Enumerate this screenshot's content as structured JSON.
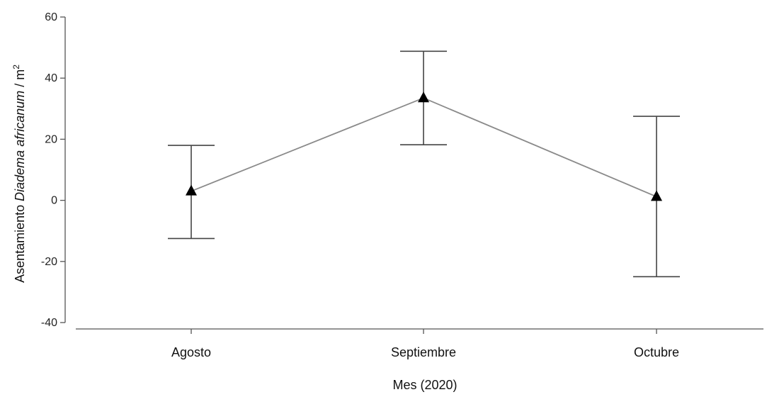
{
  "chart_data": {
    "type": "line",
    "categories": [
      "Agosto",
      "Septiembre",
      "Octubre"
    ],
    "series": [
      {
        "values": [
          3,
          33.5,
          1.2
        ],
        "error_low": [
          -12.5,
          18.2,
          -25
        ],
        "error_high": [
          18,
          48.8,
          27.5
        ],
        "marker": "triangle",
        "line_color": "#8a8a8a",
        "marker_color": "#000000"
      }
    ],
    "title": "",
    "xlabel": "Mes (2020)",
    "ylabel_parts": [
      "Asentamiento ",
      "Diadema africanum",
      " / m",
      "2"
    ],
    "yticks": [
      "60",
      "40",
      "20",
      "0",
      "-20",
      "-40"
    ],
    "ylim": [
      -40,
      60
    ],
    "grid": false
  }
}
